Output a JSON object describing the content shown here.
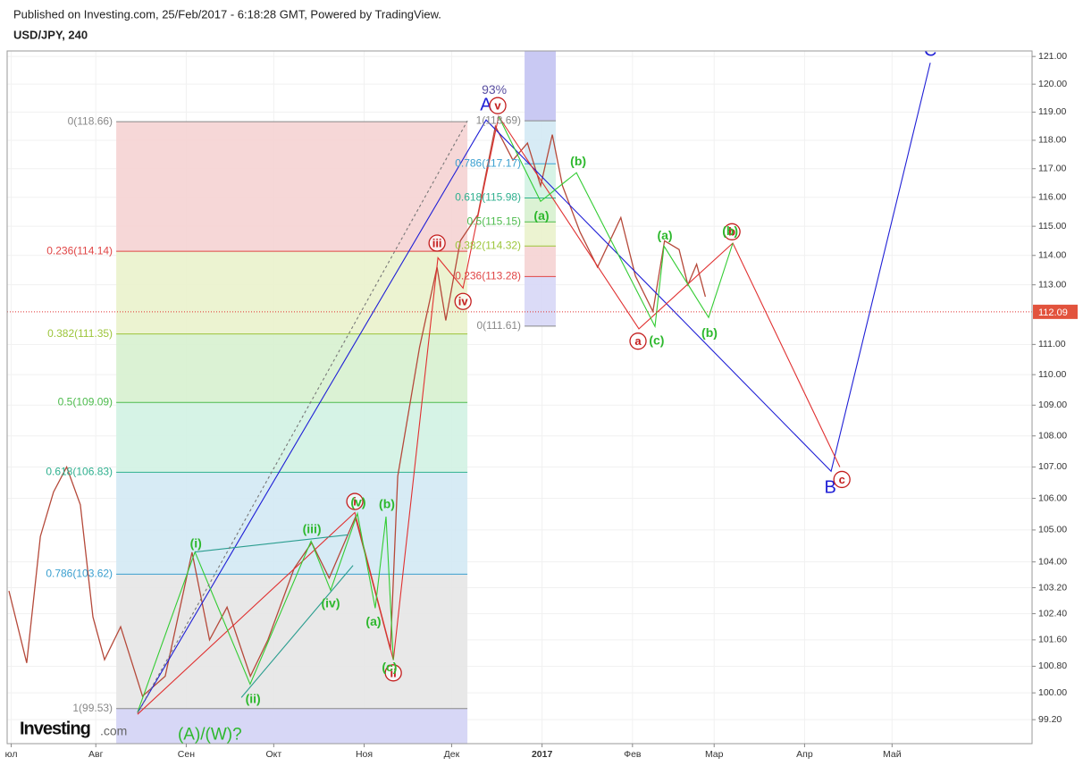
{
  "header": {
    "published": "Published on Investing.com, 25/Feb/2017 - 6:18:28 GMT, Powered by TradingView.",
    "symbol": "USD/JPY, 240",
    "logo": "Investing",
    "logo_suffix": ".com"
  },
  "chart_data": {
    "type": "line",
    "color": "#b5493a",
    "x": [
      1.2,
      7.3,
      12,
      16.5,
      21,
      25.7,
      30,
      34,
      39.5,
      47,
      54.8,
      64,
      70,
      76,
      84,
      90,
      99,
      105,
      111,
      120,
      127,
      132,
      134.5,
      142,
      148,
      151,
      156,
      162,
      168,
      174,
      179,
      183.5,
      187.5,
      191,
      197,
      203,
      211,
      216,
      222,
      226,
      231,
      234,
      237,
      240
    ],
    "values": [
      103.1,
      100.9,
      104.8,
      106.2,
      107.0,
      105.8,
      102.3,
      101.0,
      102.0,
      99.9,
      100.5,
      104.3,
      101.6,
      102.6,
      100.5,
      101.6,
      103.8,
      104.6,
      103.5,
      105.4,
      103.0,
      101.3,
      106.7,
      110.9,
      113.6,
      111.8,
      114.5,
      115.4,
      118.5,
      117.3,
      117.9,
      116.4,
      118.2,
      116.4,
      114.8,
      113.6,
      115.3,
      113.3,
      112.1,
      114.5,
      114.2,
      113.0,
      113.7,
      112.6
    ],
    "log_scale": true,
    "grid": true,
    "xlim": [
      0.6,
      352
    ],
    "ylim": [
      98.49,
      121.2
    ],
    "xticks": [
      {
        "value": 2,
        "label": "юл"
      },
      {
        "value": 31,
        "label": "Авг"
      },
      {
        "value": 62,
        "label": "Сен"
      },
      {
        "value": 92,
        "label": "Окт"
      },
      {
        "value": 123,
        "label": "Ноя"
      },
      {
        "value": 153,
        "label": "Дек"
      },
      {
        "value": 184,
        "label": "2017"
      },
      {
        "value": 215,
        "label": "Фев"
      },
      {
        "value": 243,
        "label": "Мар"
      },
      {
        "value": 274,
        "label": "Апр"
      },
      {
        "value": 304,
        "label": "Май"
      }
    ],
    "yticks": [
      {
        "value": 121,
        "label": "121.00"
      },
      {
        "value": 120,
        "label": "120.00"
      },
      {
        "value": 119,
        "label": "119.00"
      },
      {
        "value": 118,
        "label": "118.00"
      },
      {
        "value": 117,
        "label": "117.00"
      },
      {
        "value": 116,
        "label": "116.00"
      },
      {
        "value": 115,
        "label": "115.00"
      },
      {
        "value": 114,
        "label": "114.00"
      },
      {
        "value": 113,
        "label": "113.00"
      },
      {
        "value": 111,
        "label": "111.00"
      },
      {
        "value": 110,
        "label": "110.00"
      },
      {
        "value": 109,
        "label": "109.00"
      },
      {
        "value": 108,
        "label": "108.00"
      },
      {
        "value": 107,
        "label": "107.00"
      },
      {
        "value": 106,
        "label": "106.00"
      },
      {
        "value": 105,
        "label": "105.00"
      },
      {
        "value": 104,
        "label": "104.00"
      },
      {
        "value": 103.2,
        "label": "103.20"
      },
      {
        "value": 102.4,
        "label": "102.40"
      },
      {
        "value": 101.6,
        "label": "101.60"
      },
      {
        "value": 100.8,
        "label": "100.80"
      },
      {
        "value": 100,
        "label": "100.00"
      },
      {
        "value": 99.2,
        "label": "99.20"
      }
    ],
    "last_price": 112.09,
    "fibs": [
      {
        "x": [
          38,
          158.4
        ],
        "levels": [
          {
            "value": 118.66,
            "label": "0(118.66)",
            "color": "#888888",
            "band": "#f5d3d3"
          },
          {
            "value": 114.14,
            "label": "0.236(114.14)",
            "color": "#e04545",
            "band": "#eaf2cc"
          },
          {
            "value": 111.35,
            "label": "0.382(111.35)",
            "color": "#9cc53a",
            "band": "#d7f1cf"
          },
          {
            "value": 109.09,
            "label": "0.5(109.09)",
            "color": "#4cbb4c",
            "band": "#d2f2e3"
          },
          {
            "value": 106.83,
            "label": "0.618(106.83)",
            "color": "#2fb08f",
            "band": "#d3e9f4"
          },
          {
            "value": 103.62,
            "label": "0.786(103.62)",
            "color": "#3a9fcf",
            "band": "#e6e6e6"
          },
          {
            "value": 99.53,
            "label": "1(99.53)",
            "color": "#888888",
            "band": "#d7d7f6"
          }
        ]
      },
      {
        "x": [
          178,
          188.7
        ],
        "levels": [
          {
            "value": 118.69,
            "label": "1(118.69)",
            "color": "#888888",
            "band": "#e6e6e6"
          },
          {
            "value": 117.17,
            "label": "0.786(117.17)",
            "color": "#3a9fcf",
            "band": "#d3e9f4"
          },
          {
            "value": 115.98,
            "label": "0.618(115.98)",
            "color": "#2fb08f",
            "band": "#d2f2e3"
          },
          {
            "value": 115.15,
            "label": "0.5(115.15)",
            "color": "#4cbb4c",
            "band": "#d7f1cf"
          },
          {
            "value": 114.32,
            "label": "0.382(114.32)",
            "color": "#9cc53a",
            "band": "#eaf2cc"
          },
          {
            "value": 113.28,
            "label": "0.236(113.28)",
            "color": "#e04545",
            "band": "#f5d3d3"
          },
          {
            "value": 111.61,
            "label": "0(111.61)",
            "color": "#888888",
            "band": "#d7d7f6"
          }
        ]
      }
    ],
    "lines": [
      {
        "color": "#1f1fd6",
        "x": [
          45.3,
          164.8,
          283.1,
          317.1
        ],
        "y": [
          99.4,
          118.72,
          106.86,
          120.77
        ]
      },
      {
        "color": "#e03030",
        "x": [
          45.3,
          119.8,
          133,
          148.3,
          156.9,
          169.1,
          217.2,
          249.4,
          286.1
        ],
        "y": [
          99.36,
          105.55,
          100.99,
          113.92,
          112.89,
          118.85,
          111.52,
          114.42,
          107.0
        ]
      },
      {
        "color": "#33cc33",
        "x": [
          45.3,
          65,
          83.9,
          104.8,
          111.5,
          120.7,
          126.8,
          130.5,
          133
        ],
        "y": [
          99.42,
          104.31,
          100.26,
          104.65,
          103.12,
          105.52,
          102.57,
          105.42,
          100.99
        ]
      },
      {
        "color": "#33cc33",
        "x": [
          169.1,
          183.5,
          195.8,
          222.7,
          225.8,
          241.1,
          249.4
        ],
        "y": [
          118.85,
          115.86,
          116.86,
          111.6,
          114.32,
          111.9,
          114.42
        ]
      },
      {
        "color": "#2a9d8f",
        "x": [
          65,
          117.6
        ],
        "y": [
          104.31,
          104.85
        ]
      },
      {
        "color": "#2a9d8f",
        "x": [
          80.9,
          119.2
        ],
        "y": [
          99.86,
          103.89
        ]
      },
      {
        "color": "#777777",
        "dash": true,
        "x": [
          45.3,
          158.4
        ],
        "y": [
          99.4,
          118.69
        ]
      }
    ],
    "annotations": [
      {
        "text": "93%",
        "x": 167.6,
        "y": 119.77,
        "color": "#5a4fa0",
        "kind": "label"
      },
      {
        "text": "A",
        "x": 164.8,
        "y": 119.23,
        "color": "#1f1fd6",
        "kind": "major"
      },
      {
        "text": "v",
        "x": 168.8,
        "y": 119.23,
        "color": "#c41e1e",
        "kind": "circle"
      },
      {
        "text": "(b)",
        "x": 196.4,
        "y": 117.24,
        "color": "#2db82d",
        "kind": "label"
      },
      {
        "text": "(a)",
        "x": 183.8,
        "y": 115.34,
        "color": "#2db82d",
        "kind": "label"
      },
      {
        "text": "iii",
        "x": 148,
        "y": 114.42,
        "color": "#c41e1e",
        "kind": "circle"
      },
      {
        "text": "iv",
        "x": 156.9,
        "y": 112.44,
        "color": "#c41e1e",
        "kind": "circle"
      },
      {
        "text": "(i)",
        "x": 65.3,
        "y": 104.56,
        "color": "#2db82d",
        "kind": "label"
      },
      {
        "text": "(iii)",
        "x": 105.1,
        "y": 105.0,
        "color": "#2db82d",
        "kind": "label"
      },
      {
        "text": "(iv)",
        "x": 111.5,
        "y": 102.7,
        "color": "#2db82d",
        "kind": "label"
      },
      {
        "text": "(ii)",
        "x": 84.9,
        "y": 99.8,
        "color": "#2db82d",
        "kind": "label"
      },
      {
        "text": "i",
        "x": 119.8,
        "y": 105.9,
        "color": "#c41e1e",
        "kind": "circle"
      },
      {
        "text": "(v)",
        "x": 121,
        "y": 105.85,
        "color": "#2db82d",
        "kind": "label"
      },
      {
        "text": "(b)",
        "x": 130.8,
        "y": 105.8,
        "color": "#2db82d",
        "kind": "label"
      },
      {
        "text": "(a)",
        "x": 126.2,
        "y": 102.14,
        "color": "#2db82d",
        "kind": "label"
      },
      {
        "text": "ii",
        "x": 133,
        "y": 100.6,
        "color": "#c41e1e",
        "kind": "circle"
      },
      {
        "text": "(c)",
        "x": 131.7,
        "y": 100.75,
        "color": "#2db82d",
        "kind": "label"
      },
      {
        "text": "(a)",
        "x": 226.1,
        "y": 114.66,
        "color": "#2db82d",
        "kind": "label"
      },
      {
        "text": "b",
        "x": 249.1,
        "y": 114.81,
        "color": "#c41e1e",
        "kind": "circle"
      },
      {
        "text": "(b)",
        "x": 248.5,
        "y": 114.81,
        "color": "#2db82d",
        "kind": "label"
      },
      {
        "text": "a",
        "x": 216.9,
        "y": 111.11,
        "color": "#c41e1e",
        "kind": "circle"
      },
      {
        "text": "(c)",
        "x": 223.3,
        "y": 111.11,
        "color": "#2db82d",
        "kind": "label"
      },
      {
        "text": "(b)",
        "x": 241.4,
        "y": 111.36,
        "color": "#2db82d",
        "kind": "label"
      },
      {
        "text": "B",
        "x": 282.8,
        "y": 106.32,
        "color": "#1f1fd6",
        "kind": "major"
      },
      {
        "text": "c",
        "x": 286.8,
        "y": 106.6,
        "color": "#c41e1e",
        "kind": "circle"
      },
      {
        "text": "C",
        "x": 317.1,
        "y": 121.19,
        "color": "#1f1fd6",
        "kind": "major"
      },
      {
        "text": "(A)/(W)?",
        "x": 59.1,
        "y": 98.74,
        "color": "#2db82d",
        "kind": "big"
      }
    ]
  }
}
